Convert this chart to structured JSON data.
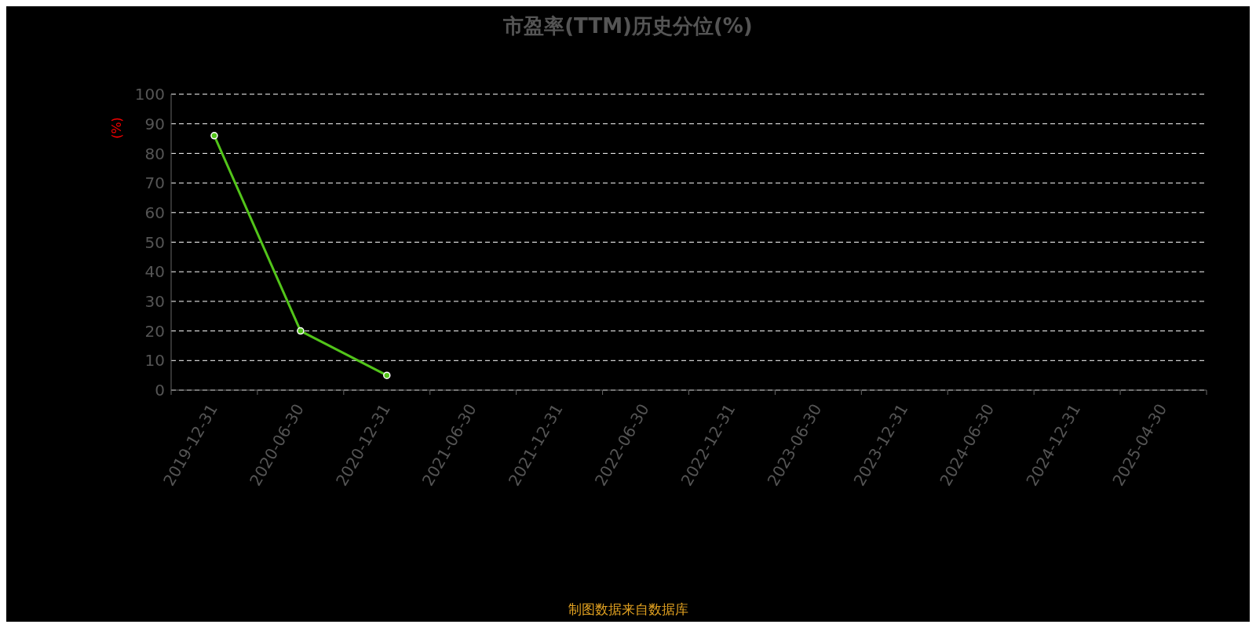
{
  "chart_data": {
    "type": "line",
    "title": "市盈率(TTM)历史分位(%)",
    "ylabel": "(%)",
    "categories": [
      "2019-12-31",
      "2020-06-30",
      "2020-12-31",
      "2021-06-30",
      "2021-12-31",
      "2022-06-30",
      "2022-12-31",
      "2023-06-30",
      "2023-12-31",
      "2024-06-30",
      "2024-12-31",
      "2025-04-30"
    ],
    "series": [
      {
        "color": "#52c41a",
        "values": [
          86,
          20,
          5,
          null,
          null,
          null,
          null,
          null,
          null,
          null,
          null,
          null
        ]
      }
    ],
    "ylim": [
      0,
      100
    ],
    "yticks": [
      0,
      10,
      20,
      30,
      40,
      50,
      60,
      70,
      80,
      90,
      100
    ],
    "grid": "y",
    "legend": false,
    "marker": "circle",
    "line_style": "solid",
    "annotations": [
      "制图数据来自数据库"
    ]
  }
}
